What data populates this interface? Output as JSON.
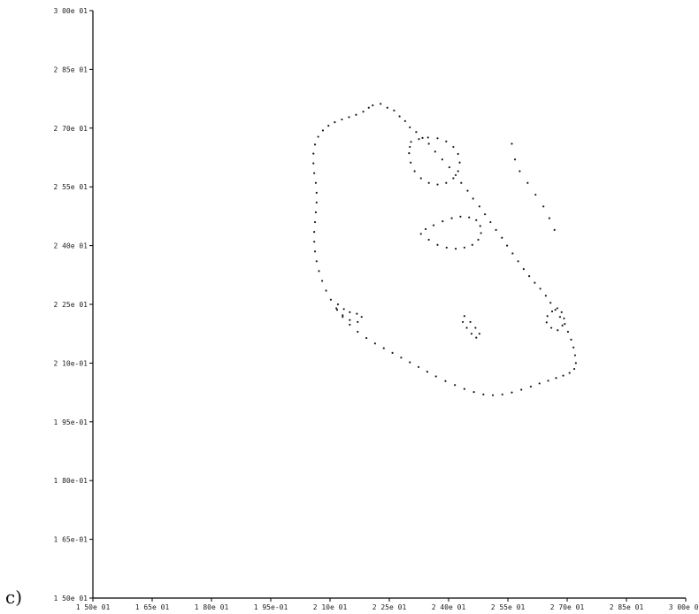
{
  "panel_label": "c)",
  "chart_data": {
    "type": "scatter",
    "title": "",
    "xlabel": "",
    "ylabel": "",
    "xlim": [
      0.15,
      0.3
    ],
    "ylim": [
      0.15,
      0.3
    ],
    "grid": false,
    "x_ticks": [
      0.15,
      0.165,
      0.18,
      0.195,
      0.21,
      0.225,
      0.24,
      0.255,
      0.27,
      0.285,
      0.3
    ],
    "x_tick_labels": [
      "1 50e 01",
      "1 65e 01",
      "1 80e 01",
      "1 95e-01",
      "2 10e 01",
      "2 25e 01",
      "2 40e 01",
      "2 55e 01",
      "2 70e 01",
      "2 85e 01",
      "3 00e 01"
    ],
    "y_ticks": [
      0.15,
      0.165,
      0.18,
      0.195,
      0.21,
      0.225,
      0.24,
      0.255,
      0.27,
      0.285,
      0.3
    ],
    "y_tick_labels": [
      "1 50e 01",
      "1 65e-01",
      "1 80e-01",
      "1 95e-01",
      "2 10e-01",
      "2 25e 01",
      "2 40e 01",
      "2 55e 01",
      "2 70e 01",
      "2 85e 01",
      "3 00e 01"
    ],
    "point_color": "#1a1a1a",
    "series": [
      {
        "points": [
          [
            0.2208,
            0.2758
          ],
          [
            0.2228,
            0.2762
          ],
          [
            0.2245,
            0.2752
          ],
          [
            0.2262,
            0.2745
          ],
          [
            0.2276,
            0.273
          ],
          [
            0.229,
            0.2718
          ],
          [
            0.2302,
            0.2702
          ],
          [
            0.2318,
            0.269
          ],
          [
            0.2334,
            0.2675
          ],
          [
            0.235,
            0.266
          ],
          [
            0.2366,
            0.264
          ],
          [
            0.2384,
            0.262
          ],
          [
            0.2402,
            0.26
          ],
          [
            0.2418,
            0.258
          ],
          [
            0.2432,
            0.256
          ],
          [
            0.2448,
            0.254
          ],
          [
            0.2462,
            0.252
          ],
          [
            0.2478,
            0.25
          ],
          [
            0.2492,
            0.248
          ],
          [
            0.2506,
            0.246
          ],
          [
            0.252,
            0.244
          ],
          [
            0.2535,
            0.242
          ],
          [
            0.2548,
            0.24
          ],
          [
            0.2562,
            0.238
          ],
          [
            0.2576,
            0.236
          ],
          [
            0.259,
            0.234
          ],
          [
            0.2604,
            0.2322
          ],
          [
            0.2618,
            0.2305
          ],
          [
            0.2632,
            0.229
          ],
          [
            0.2646,
            0.2272
          ],
          [
            0.2658,
            0.2254
          ],
          [
            0.267,
            0.2236
          ],
          [
            0.2682,
            0.2218
          ],
          [
            0.2694,
            0.22
          ],
          [
            0.2702,
            0.218
          ],
          [
            0.271,
            0.216
          ],
          [
            0.2716,
            0.214
          ],
          [
            0.272,
            0.212
          ],
          [
            0.2722,
            0.21
          ],
          [
            0.2718,
            0.2085
          ],
          [
            0.2706,
            0.2075
          ],
          [
            0.269,
            0.2068
          ],
          [
            0.2672,
            0.2062
          ],
          [
            0.2652,
            0.2055
          ],
          [
            0.263,
            0.2048
          ],
          [
            0.2608,
            0.204
          ],
          [
            0.2584,
            0.2032
          ],
          [
            0.256,
            0.2025
          ],
          [
            0.2536,
            0.202
          ],
          [
            0.2512,
            0.2018
          ],
          [
            0.2488,
            0.202
          ],
          [
            0.2464,
            0.2026
          ],
          [
            0.244,
            0.2034
          ],
          [
            0.2416,
            0.2044
          ],
          [
            0.2392,
            0.2054
          ],
          [
            0.2368,
            0.2066
          ],
          [
            0.2346,
            0.2078
          ],
          [
            0.2324,
            0.209
          ],
          [
            0.2302,
            0.2102
          ],
          [
            0.228,
            0.2114
          ],
          [
            0.2258,
            0.2126
          ],
          [
            0.2236,
            0.2138
          ],
          [
            0.2214,
            0.215
          ],
          [
            0.2192,
            0.2164
          ],
          [
            0.217,
            0.218
          ],
          [
            0.215,
            0.2198
          ],
          [
            0.2132,
            0.2218
          ],
          [
            0.2116,
            0.224
          ],
          [
            0.2102,
            0.2262
          ],
          [
            0.209,
            0.2285
          ],
          [
            0.208,
            0.231
          ],
          [
            0.2072,
            0.2335
          ],
          [
            0.2066,
            0.236
          ],
          [
            0.2062,
            0.2385
          ],
          [
            0.206,
            0.241
          ],
          [
            0.206,
            0.2435
          ],
          [
            0.2062,
            0.246
          ],
          [
            0.2064,
            0.2485
          ],
          [
            0.2066,
            0.251
          ],
          [
            0.2066,
            0.2535
          ],
          [
            0.2064,
            0.256
          ],
          [
            0.206,
            0.2585
          ],
          [
            0.2058,
            0.261
          ],
          [
            0.2058,
            0.2635
          ],
          [
            0.2062,
            0.2658
          ],
          [
            0.207,
            0.2678
          ],
          [
            0.2082,
            0.2694
          ],
          [
            0.2096,
            0.2706
          ],
          [
            0.2112,
            0.2715
          ],
          [
            0.213,
            0.2722
          ],
          [
            0.2148,
            0.2728
          ],
          [
            0.2166,
            0.2734
          ],
          [
            0.2184,
            0.2742
          ],
          [
            0.2198,
            0.2752
          ],
          [
            0.2305,
            0.2665
          ],
          [
            0.2325,
            0.2672
          ],
          [
            0.2348,
            0.2676
          ],
          [
            0.2372,
            0.2674
          ],
          [
            0.2394,
            0.2666
          ],
          [
            0.2412,
            0.2652
          ],
          [
            0.2424,
            0.2634
          ],
          [
            0.2428,
            0.2612
          ],
          [
            0.2424,
            0.259
          ],
          [
            0.2412,
            0.2572
          ],
          [
            0.2394,
            0.256
          ],
          [
            0.2372,
            0.2556
          ],
          [
            0.235,
            0.256
          ],
          [
            0.233,
            0.2572
          ],
          [
            0.2314,
            0.259
          ],
          [
            0.2304,
            0.2612
          ],
          [
            0.23,
            0.2636
          ],
          [
            0.2302,
            0.2652
          ],
          [
            0.233,
            0.243
          ],
          [
            0.235,
            0.2415
          ],
          [
            0.2372,
            0.2402
          ],
          [
            0.2395,
            0.2395
          ],
          [
            0.2418,
            0.2392
          ],
          [
            0.244,
            0.2395
          ],
          [
            0.246,
            0.2402
          ],
          [
            0.2475,
            0.2415
          ],
          [
            0.2482,
            0.2432
          ],
          [
            0.248,
            0.245
          ],
          [
            0.247,
            0.2465
          ],
          [
            0.2452,
            0.2472
          ],
          [
            0.243,
            0.2474
          ],
          [
            0.2408,
            0.247
          ],
          [
            0.2385,
            0.2462
          ],
          [
            0.2362,
            0.2452
          ],
          [
            0.2342,
            0.2442
          ],
          [
            0.212,
            0.225
          ],
          [
            0.2135,
            0.2238
          ],
          [
            0.215,
            0.223
          ],
          [
            0.2168,
            0.2226
          ],
          [
            0.218,
            0.2218
          ],
          [
            0.217,
            0.2205
          ],
          [
            0.215,
            0.221
          ],
          [
            0.2132,
            0.2222
          ],
          [
            0.2118,
            0.2236
          ],
          [
            0.265,
            0.222
          ],
          [
            0.2662,
            0.2232
          ],
          [
            0.2675,
            0.224
          ],
          [
            0.2686,
            0.223
          ],
          [
            0.2692,
            0.2214
          ],
          [
            0.2688,
            0.2196
          ],
          [
            0.2676,
            0.2184
          ],
          [
            0.266,
            0.219
          ],
          [
            0.2648,
            0.2204
          ],
          [
            0.244,
            0.222
          ],
          [
            0.2455,
            0.2205
          ],
          [
            0.2468,
            0.219
          ],
          [
            0.2478,
            0.2175
          ],
          [
            0.247,
            0.2165
          ],
          [
            0.2458,
            0.2175
          ],
          [
            0.2446,
            0.219
          ],
          [
            0.2436,
            0.2205
          ],
          [
            0.256,
            0.266
          ],
          [
            0.2568,
            0.262
          ],
          [
            0.258,
            0.259
          ],
          [
            0.26,
            0.256
          ],
          [
            0.262,
            0.253
          ],
          [
            0.264,
            0.25
          ],
          [
            0.2655,
            0.247
          ],
          [
            0.2668,
            0.244
          ]
        ]
      }
    ]
  }
}
